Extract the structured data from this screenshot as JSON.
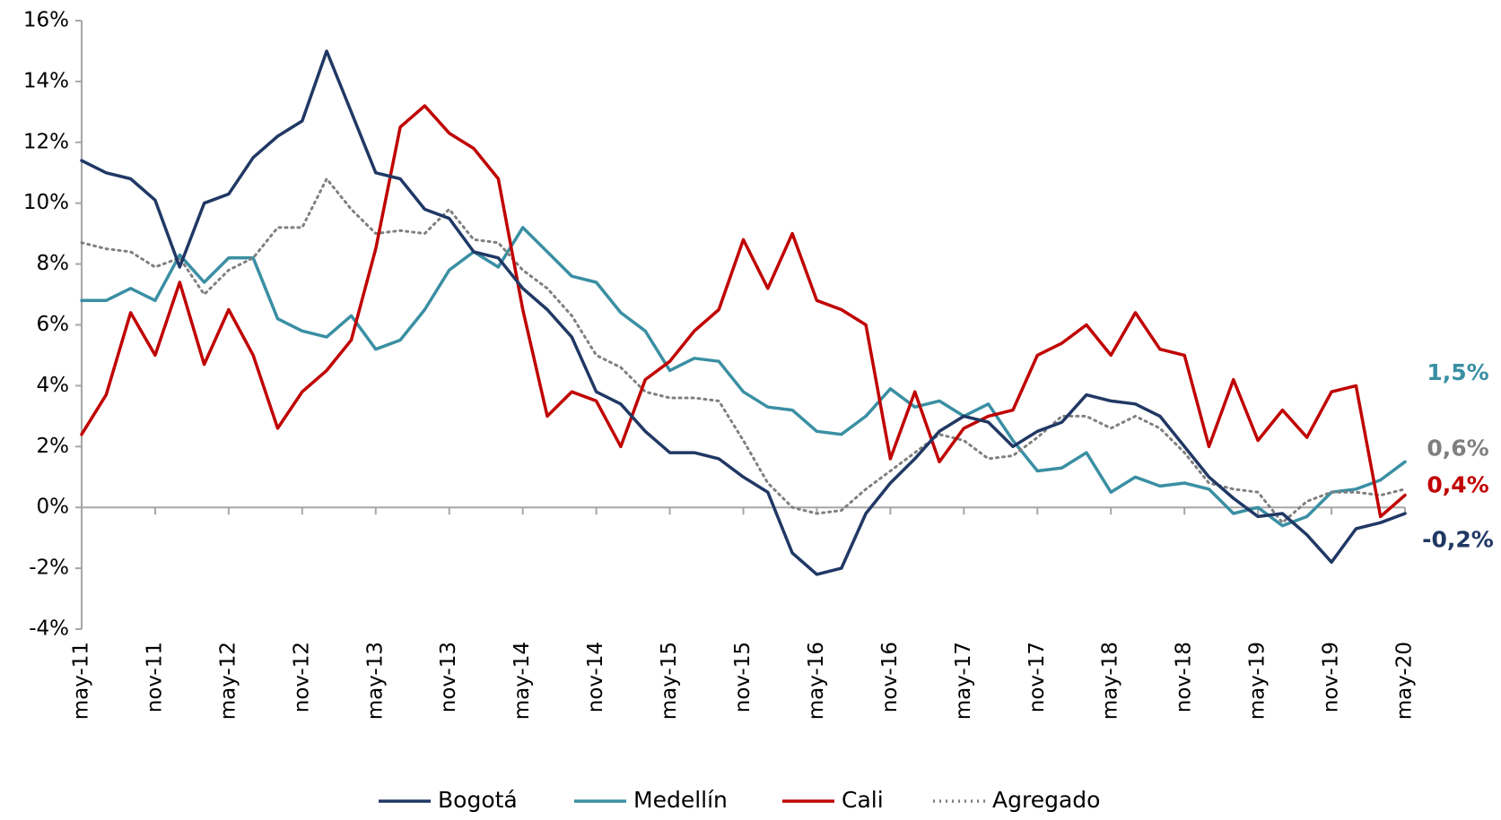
{
  "chart_data": {
    "type": "line",
    "categories": [
      "may-11",
      null,
      null,
      "nov-11",
      null,
      null,
      "may-12",
      null,
      null,
      "nov-12",
      null,
      null,
      "may-13",
      null,
      null,
      "nov-13",
      null,
      null,
      "may-14",
      null,
      null,
      "nov-14",
      null,
      null,
      "may-15",
      null,
      null,
      "nov-15",
      null,
      null,
      "may-16",
      null,
      null,
      "nov-16",
      null,
      null,
      "may-17",
      null,
      null,
      "nov-17",
      null,
      null,
      "may-18",
      null,
      null,
      "nov-18",
      null,
      null,
      "may-19",
      null,
      null,
      "nov-19",
      null,
      null,
      "may-20"
    ],
    "ylim": [
      -4,
      16
    ],
    "yticks": [
      {
        "value": -4,
        "label": "-4%"
      },
      {
        "value": -2,
        "label": "-2%"
      },
      {
        "value": 0,
        "label": "0%"
      },
      {
        "value": 2,
        "label": "2%"
      },
      {
        "value": 4,
        "label": "4%"
      },
      {
        "value": 6,
        "label": "6%"
      },
      {
        "value": 8,
        "label": "8%"
      },
      {
        "value": 10,
        "label": "10%"
      },
      {
        "value": 12,
        "label": "12%"
      },
      {
        "value": 14,
        "label": "14%"
      },
      {
        "value": 16,
        "label": "16%"
      }
    ],
    "legend": "bottom",
    "series": [
      {
        "name": "Bogotá",
        "color": "#203864",
        "dash": "solid",
        "end_label": "-0,2%",
        "values": [
          11.4,
          11.0,
          10.8,
          10.1,
          7.9,
          10.0,
          10.3,
          11.5,
          12.2,
          12.7,
          15.0,
          13.0,
          11.0,
          10.8,
          9.8,
          9.5,
          8.4,
          8.2,
          7.2,
          6.5,
          5.6,
          3.8,
          3.4,
          2.5,
          1.8,
          1.8,
          1.6,
          1.0,
          0.5,
          -1.5,
          -2.2,
          -2.0,
          -0.2,
          0.8,
          1.6,
          2.5,
          3.0,
          2.8,
          2.0,
          2.5,
          2.8,
          3.7,
          3.5,
          3.4,
          3.0,
          2.0,
          1.0,
          0.3,
          -0.3,
          -0.2,
          -0.9,
          -1.8,
          -0.7,
          -0.5,
          -0.2
        ]
      },
      {
        "name": "Medellín",
        "color": "#3a8fa3",
        "dash": "solid",
        "end_label": "1,5%",
        "values": [
          6.8,
          6.8,
          7.2,
          6.8,
          8.3,
          7.4,
          8.2,
          8.2,
          6.2,
          5.8,
          5.6,
          6.3,
          5.2,
          5.5,
          6.5,
          7.8,
          8.4,
          7.9,
          9.2,
          8.4,
          7.6,
          7.4,
          6.4,
          5.8,
          4.5,
          4.9,
          4.8,
          3.8,
          3.3,
          3.2,
          2.5,
          2.4,
          3.0,
          3.9,
          3.3,
          3.5,
          3.0,
          3.4,
          2.2,
          1.2,
          1.3,
          1.8,
          0.5,
          1.0,
          0.7,
          0.8,
          0.6,
          -0.2,
          0.0,
          -0.6,
          -0.3,
          0.5,
          0.6,
          0.9,
          1.5
        ]
      },
      {
        "name": "Cali",
        "color": "#c00000",
        "dash": "solid",
        "end_label": "0,4%",
        "values": [
          2.4,
          3.7,
          6.4,
          5.0,
          7.4,
          4.7,
          6.5,
          5.0,
          2.6,
          3.8,
          4.5,
          5.5,
          8.5,
          12.5,
          13.2,
          12.3,
          11.8,
          10.8,
          6.5,
          3.0,
          3.8,
          3.5,
          2.0,
          4.2,
          4.8,
          5.8,
          6.5,
          8.8,
          7.2,
          9.0,
          6.8,
          6.5,
          6.0,
          1.6,
          3.8,
          1.5,
          2.6,
          3.0,
          3.2,
          5.0,
          5.4,
          6.0,
          5.0,
          6.4,
          5.2,
          5.0,
          2.0,
          4.2,
          2.2,
          3.2,
          2.3,
          3.8,
          4.0,
          -0.3,
          0.4
        ]
      },
      {
        "name": "Agregado",
        "color": "#7f7f7f",
        "dash": "dotted",
        "end_label": "0,6%",
        "values": [
          8.7,
          8.5,
          8.4,
          7.9,
          8.2,
          7.0,
          7.8,
          8.2,
          9.2,
          9.2,
          10.8,
          9.8,
          9.0,
          9.1,
          9.0,
          9.8,
          8.8,
          8.7,
          7.8,
          7.2,
          6.3,
          5.0,
          4.6,
          3.8,
          3.6,
          3.6,
          3.5,
          2.2,
          0.8,
          0.0,
          -0.2,
          -0.1,
          0.6,
          1.2,
          1.8,
          2.4,
          2.2,
          1.6,
          1.7,
          2.3,
          3.0,
          3.0,
          2.6,
          3.0,
          2.6,
          1.8,
          0.8,
          0.6,
          0.5,
          -0.5,
          0.2,
          0.5,
          0.5,
          0.4,
          0.6
        ]
      }
    ]
  }
}
